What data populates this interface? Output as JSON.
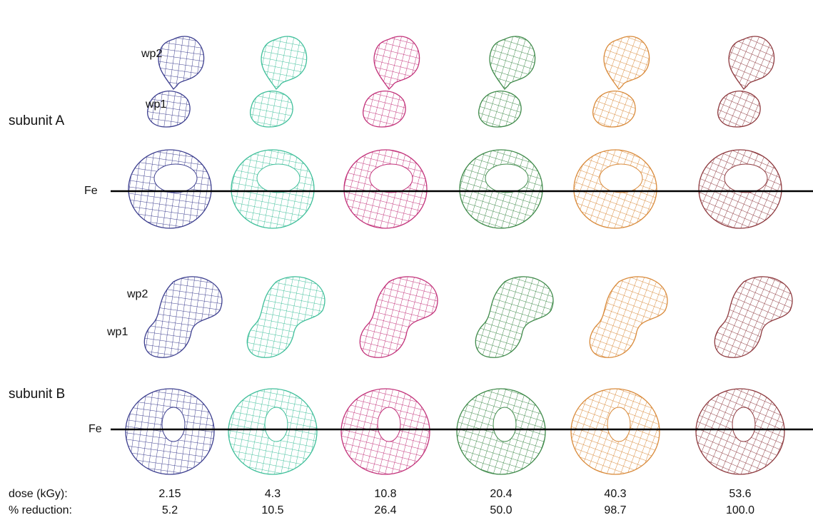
{
  "labels": {
    "subunit_a": "subunit A",
    "wp2_a": "wp2",
    "wp1_a": "wp1",
    "fe_a": "Fe",
    "subunit_b": "subunit B",
    "wp2_b": "wp2",
    "wp1_b": "wp1",
    "fe_b": "Fe"
  },
  "table": {
    "row_labels": [
      "dose (kGy):",
      "% reduction:"
    ],
    "columns": [
      {
        "dose": "2.15",
        "reduction": "5.2",
        "color": "#3d3f8f"
      },
      {
        "dose": "4.3",
        "reduction": "10.5",
        "color": "#3fbf9a"
      },
      {
        "dose": "10.8",
        "reduction": "26.4",
        "color": "#c2327a"
      },
      {
        "dose": "20.4",
        "reduction": "50.0",
        "color": "#3f8a4a"
      },
      {
        "dose": "40.3",
        "reduction": "98.7",
        "color": "#d98a3a"
      },
      {
        "dose": "53.6",
        "reduction": "100.0",
        "color": "#8e3a3f"
      }
    ]
  }
}
